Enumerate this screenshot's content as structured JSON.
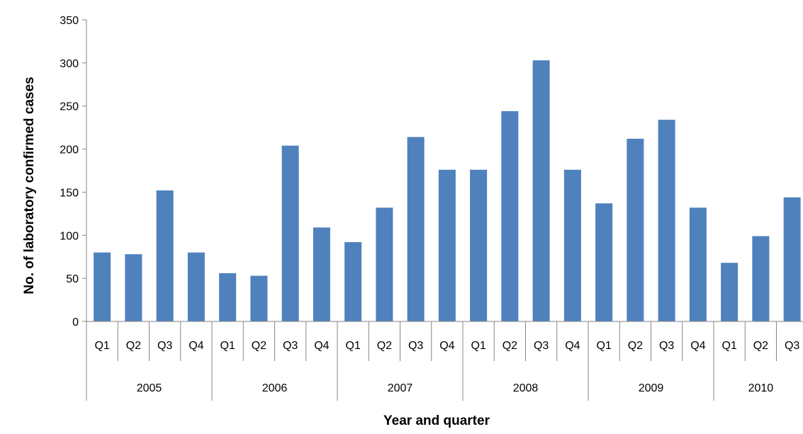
{
  "chart_data": {
    "type": "bar",
    "title": "",
    "xlabel": "Year and quarter",
    "ylabel": "No. of laboratory confirmed cases",
    "ylim": [
      0,
      350
    ],
    "yticks": [
      "0",
      "50",
      "100",
      "150",
      "200",
      "250",
      "300",
      "350"
    ],
    "grid": false,
    "legend": "none",
    "bar_color": "#4F81BD",
    "groups": [
      {
        "label": "2005",
        "count": 4
      },
      {
        "label": "2006",
        "count": 4
      },
      {
        "label": "2007",
        "count": 4
      },
      {
        "label": "2008",
        "count": 4
      },
      {
        "label": "2009",
        "count": 4
      },
      {
        "label": "2010",
        "count": 3
      }
    ],
    "categories": [
      "Q1",
      "Q2",
      "Q3",
      "Q4",
      "Q1",
      "Q2",
      "Q3",
      "Q4",
      "Q1",
      "Q2",
      "Q3",
      "Q4",
      "Q1",
      "Q2",
      "Q3",
      "Q4",
      "Q1",
      "Q2",
      "Q3",
      "Q4",
      "Q1",
      "Q2",
      "Q3"
    ],
    "values": [
      80,
      78,
      152,
      80,
      56,
      53,
      204,
      109,
      92,
      132,
      214,
      176,
      176,
      244,
      303,
      176,
      137,
      212,
      234,
      132,
      68,
      99,
      144
    ]
  }
}
